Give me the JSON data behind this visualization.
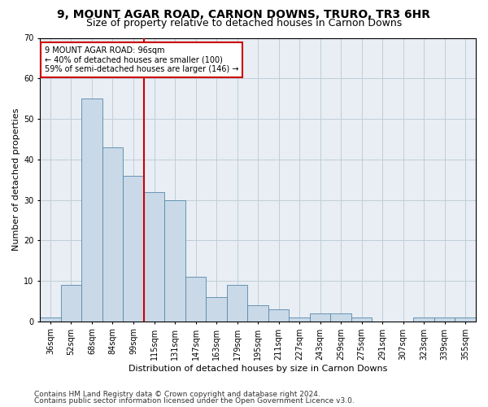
{
  "title1": "9, MOUNT AGAR ROAD, CARNON DOWNS, TRURO, TR3 6HR",
  "title2": "Size of property relative to detached houses in Carnon Downs",
  "xlabel": "Distribution of detached houses by size in Carnon Downs",
  "ylabel": "Number of detached properties",
  "categories": [
    "36sqm",
    "52sqm",
    "68sqm",
    "84sqm",
    "99sqm",
    "115sqm",
    "131sqm",
    "147sqm",
    "163sqm",
    "179sqm",
    "195sqm",
    "211sqm",
    "227sqm",
    "243sqm",
    "259sqm",
    "275sqm",
    "291sqm",
    "307sqm",
    "323sqm",
    "339sqm",
    "355sqm"
  ],
  "values": [
    1,
    9,
    55,
    43,
    36,
    32,
    30,
    11,
    6,
    9,
    4,
    3,
    1,
    2,
    2,
    1,
    0,
    0,
    1,
    1,
    1
  ],
  "bar_color": "#c9d9e8",
  "bar_edge_color": "#5588aa",
  "ylim": [
    0,
    70
  ],
  "yticks": [
    0,
    10,
    20,
    30,
    40,
    50,
    60,
    70
  ],
  "red_line_x": 4.5,
  "annotation_title": "9 MOUNT AGAR ROAD: 96sqm",
  "annotation_line1": "← 40% of detached houses are smaller (100)",
  "annotation_line2": "59% of semi-detached houses are larger (146) →",
  "annotation_box_color": "#ffffff",
  "annotation_border_color": "#cc0000",
  "red_line_color": "#cc0000",
  "footer1": "Contains HM Land Registry data © Crown copyright and database right 2024.",
  "footer2": "Contains public sector information licensed under the Open Government Licence v3.0.",
  "bg_color": "#ffffff",
  "plot_bg_color": "#e8eef4",
  "grid_color": "#c0cdd8",
  "title1_fontsize": 10,
  "title2_fontsize": 9,
  "axis_label_fontsize": 8,
  "tick_fontsize": 7,
  "footer_fontsize": 6.5,
  "annotation_fontsize": 7
}
